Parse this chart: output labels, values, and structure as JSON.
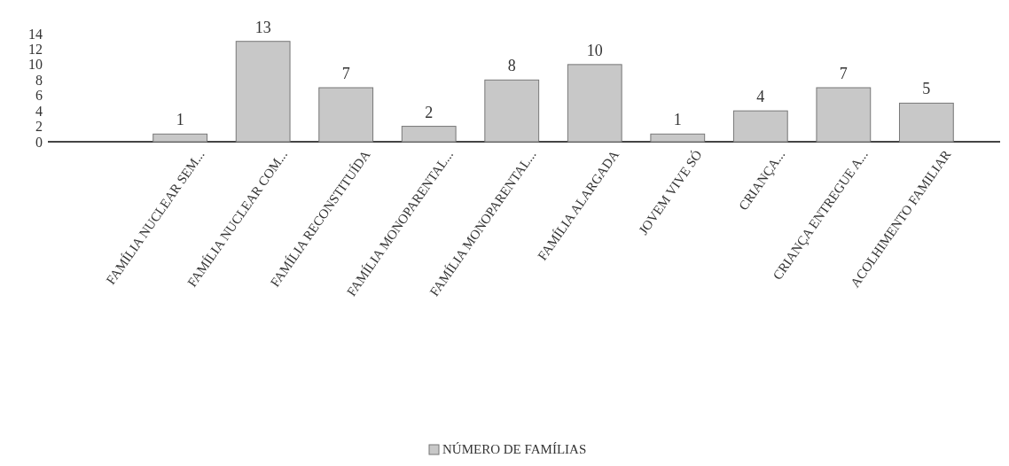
{
  "chart_data": {
    "type": "bar",
    "categories": [
      "FAMÍLIA NUCLEAR SEM...",
      "FAMÍLIA NUCLEAR COM...",
      "FAMÍLIA RECONSTITUÍDA",
      "FAMÍLIA MONOPARENTAL...",
      "FAMÍLIA MONOPARENTAL...",
      "FAMÍLIA ALARGADA",
      "JOVEM VIVE SÓ",
      "CRIANÇA...",
      "CRIANÇA ENTREGUE A...",
      "ACOLHIMENTO FAMILIAR"
    ],
    "series": [
      {
        "name": "NÚMERO DE FAMÍLIAS",
        "color": "#c8c8c8",
        "values": [
          1,
          13,
          7,
          2,
          8,
          10,
          1,
          4,
          7,
          5
        ]
      }
    ],
    "ylim": [
      0,
      14
    ],
    "yticks": [
      0,
      2,
      4,
      6,
      8,
      10,
      12,
      14
    ],
    "data_labels": true,
    "legend": "bottom",
    "grid": false
  }
}
